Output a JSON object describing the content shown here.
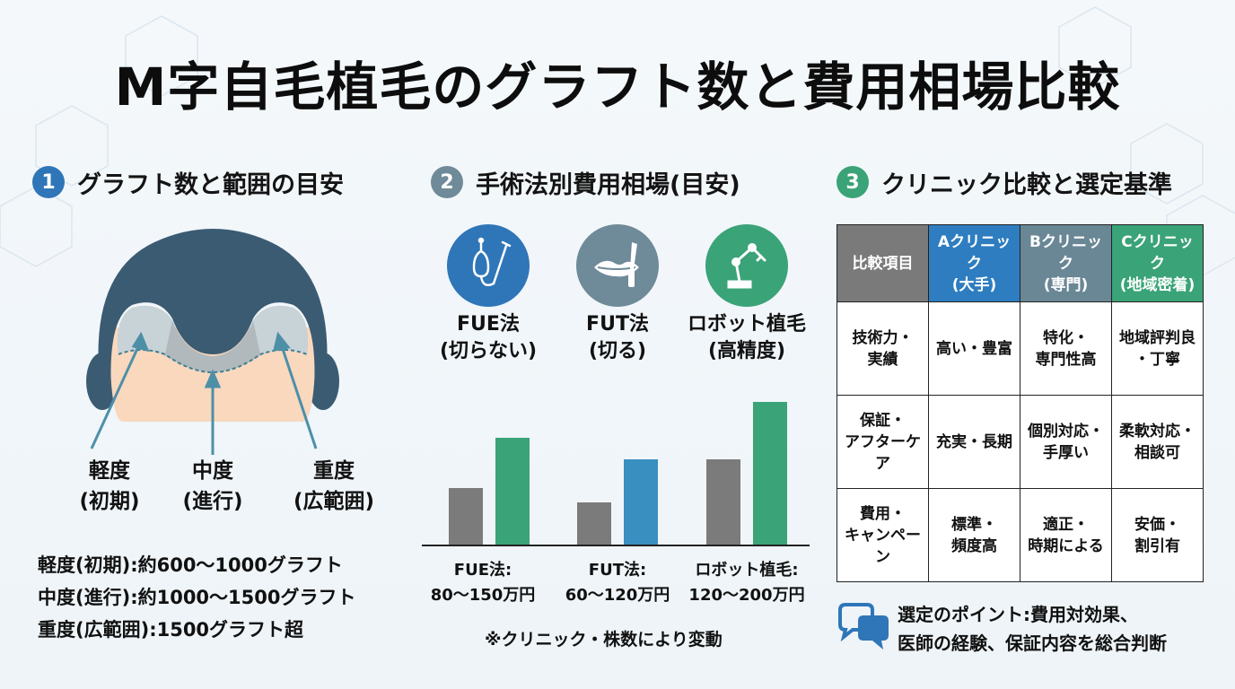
{
  "title": "M字自毛植毛のグラフト数と費用相場比較",
  "colors": {
    "section1": "#2f76b8",
    "section2": "#6f8a98",
    "section3": "#3aa377",
    "bar_gray": "#7b7b7b",
    "bar_green": "#3aa377",
    "bar_blue": "#3a8fc1",
    "hair": "#3b5b73",
    "skin": "#f9d8be"
  },
  "section1": {
    "number": "1",
    "heading": "グラフト数と範囲の目安",
    "severity": [
      {
        "line1": "軽度",
        "line2": "(初期)"
      },
      {
        "line1": "中度",
        "line2": "(進行)"
      },
      {
        "line1": "重度",
        "line2": "(広範囲)"
      }
    ],
    "grafts": [
      "軽度(初期):約600〜1000グラフト",
      "中度(進行):約1000〜1500グラフト",
      "重度(広範囲):1500グラフト超"
    ]
  },
  "section2": {
    "number": "2",
    "heading": "手術法別費用相場(目安)",
    "methods": [
      {
        "icon": "fue-punch-icon",
        "name": "FUE法",
        "sub": "(切らない)",
        "cost_label": "FUE法:",
        "cost_range": "80〜150万円"
      },
      {
        "icon": "scalpel-icon",
        "name": "FUT法",
        "sub": "(切る)",
        "cost_label": "FUT法:",
        "cost_range": "60〜120万円"
      },
      {
        "icon": "robot-arm-icon",
        "name": "ロボット植毛",
        "sub": "(高精度)",
        "cost_label": "ロボット植毛:",
        "cost_range": "120〜200万円"
      }
    ],
    "note": "※クリニック・株数により変動"
  },
  "chart_data": {
    "type": "bar",
    "categories": [
      "FUE法",
      "FUT法",
      "ロボット植毛"
    ],
    "series": [
      {
        "values": [
          80,
          60,
          120
        ],
        "color": "#7b7b7b"
      },
      {
        "values": [
          150,
          120,
          200
        ],
        "colors": [
          "#3aa377",
          "#3a8fc1",
          "#3aa377"
        ]
      }
    ],
    "ylim": [
      0,
      210
    ],
    "grid": false,
    "unit": "万円"
  },
  "section3": {
    "number": "3",
    "heading": "クリニック比較と選定基準",
    "table": {
      "headers": [
        {
          "l1": "比較項目",
          "l2": ""
        },
        {
          "l1": "Aクリニック",
          "l2": "(大手)"
        },
        {
          "l1": "Bクリニック",
          "l2": "(専門)"
        },
        {
          "l1": "Cクリニック",
          "l2": "(地域密着)"
        }
      ],
      "rows": [
        [
          {
            "l1": "技術力・",
            "l2": "実績"
          },
          {
            "l1": "高い・豊富",
            "l2": ""
          },
          {
            "l1": "特化・",
            "l2": "専門性高"
          },
          {
            "l1": "地域評判良",
            "l2": "・丁寧"
          }
        ],
        [
          {
            "l1": "保証・",
            "l2": "アフターケア"
          },
          {
            "l1": "充実・長期",
            "l2": ""
          },
          {
            "l1": "個別対応・",
            "l2": "手厚い"
          },
          {
            "l1": "柔軟対応・",
            "l2": "相談可"
          }
        ],
        [
          {
            "l1": "費用・",
            "l2": "キャンペーン"
          },
          {
            "l1": "標準・",
            "l2": "頻度高"
          },
          {
            "l1": "適正・",
            "l2": "時期による"
          },
          {
            "l1": "安価・",
            "l2": "割引有"
          }
        ]
      ]
    },
    "point_icon": "speech-bubbles-icon",
    "point_line1": "選定のポイント:費用対効果、",
    "point_line2": "医師の経験、保証内容を総合判断"
  }
}
